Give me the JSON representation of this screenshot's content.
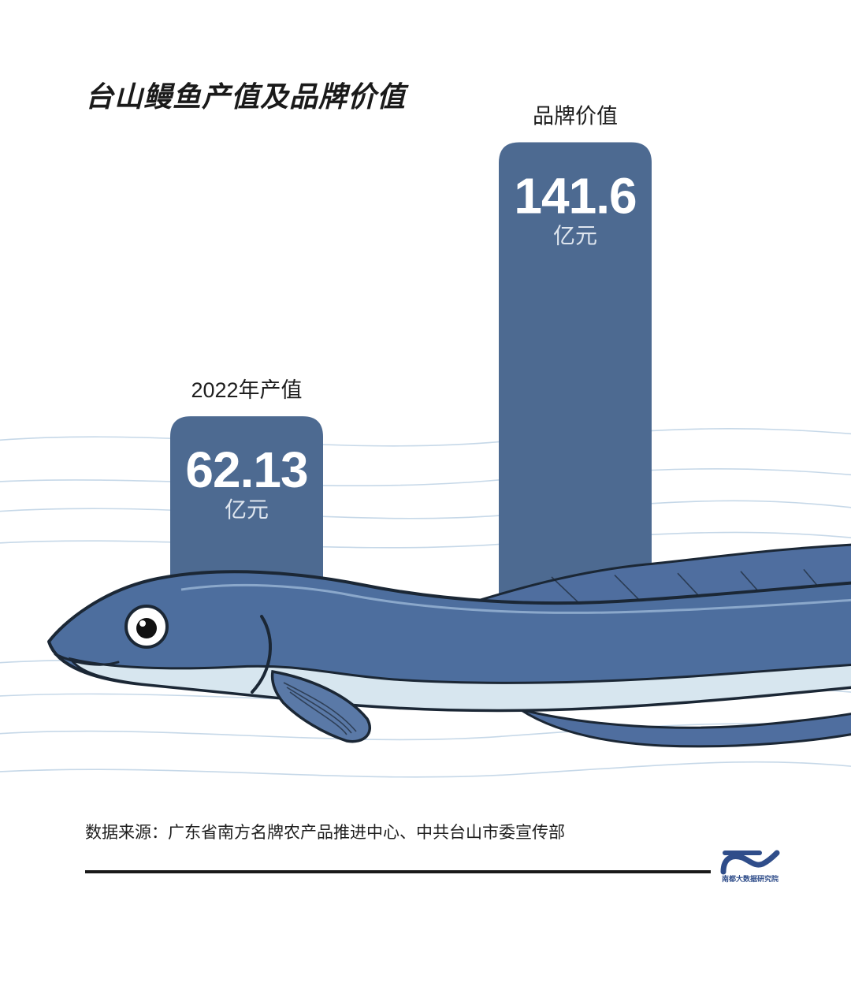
{
  "chart_data": {
    "type": "bar",
    "title": "台山鳗鱼产值及品牌价值",
    "categories": [
      "2022年产值",
      "品牌价值"
    ],
    "values": [
      62.13,
      141.6
    ],
    "value_labels": [
      "62.13",
      "141.6"
    ],
    "unit": "亿元",
    "grid": false,
    "legend": "none"
  },
  "source": "数据来源：广东省南方名牌农产品推进中心、中共台山市委宣传部",
  "logo": {
    "text": "南都大数据研究院",
    "icon": "wave-logo-icon"
  },
  "colors": {
    "bar": "#4d6a91",
    "bar_text": "#ffffff",
    "bar_unit_text": "#dfe6ef",
    "eel_body": "#4d6e9e",
    "eel_belly": "#d7e6ef",
    "eel_outline": "#1b2735",
    "water_lines": "#c6d8e8",
    "logo": "#2f4d8a",
    "text": "#1e1e1e"
  }
}
